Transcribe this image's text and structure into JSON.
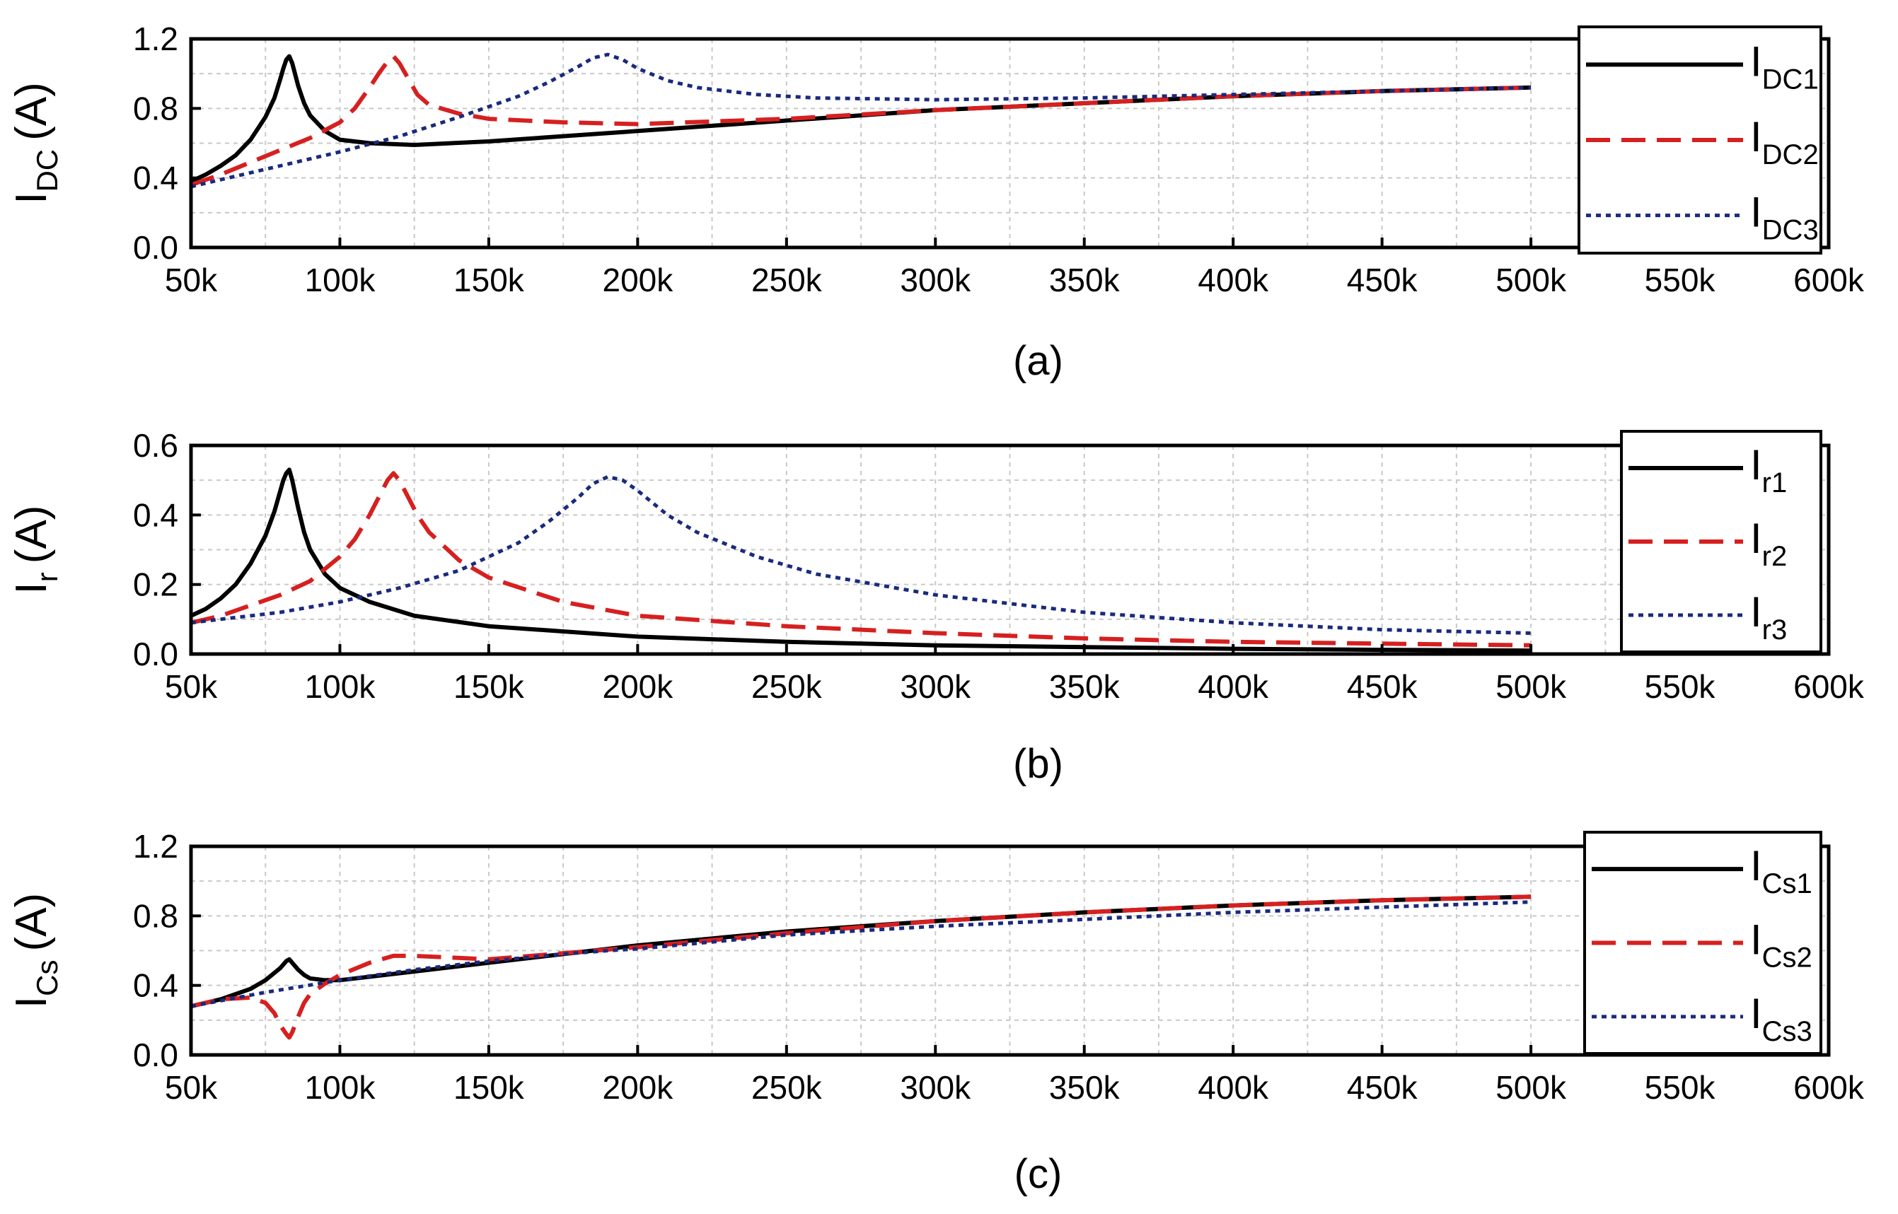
{
  "chart_data": [
    {
      "type": "line",
      "caption": "(a)",
      "ylabel": {
        "main": "I",
        "sub": "DC",
        "unit": "(A)"
      },
      "xlim": [
        50,
        600
      ],
      "ylim": [
        0,
        1.2
      ],
      "xticks": [
        "50k",
        "100k",
        "150k",
        "200k",
        "250k",
        "300k",
        "350k",
        "400k",
        "450k",
        "500k",
        "550k",
        "600k"
      ],
      "yticks": [
        "0.0",
        "0.4",
        "0.8",
        "1.2"
      ],
      "grid": true,
      "legend_position": "right",
      "series": [
        {
          "name": "IDC1",
          "label_main": "I",
          "label_sub": "DC1",
          "color": "#000000",
          "style": "solid",
          "x": [
            50,
            55,
            60,
            65,
            70,
            75,
            78,
            80,
            81,
            82,
            83,
            84,
            86,
            88,
            90,
            95,
            100,
            110,
            125,
            150,
            200,
            250,
            300,
            350,
            400,
            450,
            500
          ],
          "y": [
            0.38,
            0.42,
            0.47,
            0.53,
            0.62,
            0.75,
            0.86,
            0.97,
            1.03,
            1.08,
            1.1,
            1.06,
            0.93,
            0.83,
            0.76,
            0.67,
            0.62,
            0.6,
            0.59,
            0.61,
            0.67,
            0.73,
            0.79,
            0.83,
            0.87,
            0.9,
            0.92
          ]
        },
        {
          "name": "IDC2",
          "label_main": "I",
          "label_sub": "DC2",
          "color": "#d62020",
          "style": "dashed",
          "x": [
            50,
            60,
            70,
            80,
            90,
            100,
            105,
            110,
            113,
            116,
            118,
            120,
            123,
            126,
            130,
            140,
            150,
            175,
            200,
            250,
            300,
            350,
            400,
            450,
            500
          ],
          "y": [
            0.36,
            0.42,
            0.49,
            0.56,
            0.63,
            0.72,
            0.8,
            0.92,
            1.0,
            1.07,
            1.1,
            1.06,
            0.97,
            0.88,
            0.82,
            0.77,
            0.74,
            0.72,
            0.71,
            0.74,
            0.79,
            0.83,
            0.87,
            0.9,
            0.92
          ]
        },
        {
          "name": "IDC3",
          "label_main": "I",
          "label_sub": "DC3",
          "color": "#1a2a7c",
          "style": "dotted",
          "x": [
            50,
            60,
            80,
            100,
            120,
            140,
            160,
            170,
            180,
            185,
            190,
            195,
            200,
            210,
            220,
            240,
            260,
            300,
            350,
            400,
            450,
            500
          ],
          "y": [
            0.35,
            0.39,
            0.47,
            0.55,
            0.64,
            0.75,
            0.87,
            0.95,
            1.04,
            1.09,
            1.11,
            1.08,
            1.03,
            0.96,
            0.92,
            0.88,
            0.86,
            0.85,
            0.86,
            0.88,
            0.9,
            0.92
          ]
        }
      ]
    },
    {
      "type": "line",
      "caption": "(b)",
      "ylabel": {
        "main": "I",
        "sub": "r",
        "unit": "(A)"
      },
      "xlim": [
        50,
        600
      ],
      "ylim": [
        0,
        0.6
      ],
      "xticks": [
        "50k",
        "100k",
        "150k",
        "200k",
        "250k",
        "300k",
        "350k",
        "400k",
        "450k",
        "500k",
        "550k",
        "600k"
      ],
      "yticks": [
        "0.0",
        "0.2",
        "0.4",
        "0.6"
      ],
      "grid": true,
      "legend_position": "right",
      "series": [
        {
          "name": "Ir1",
          "label_main": "I",
          "label_sub": "r1",
          "color": "#000000",
          "style": "solid",
          "x": [
            50,
            55,
            60,
            65,
            70,
            75,
            78,
            80,
            81,
            82,
            83,
            84,
            86,
            88,
            90,
            95,
            100,
            110,
            125,
            150,
            200,
            250,
            300,
            350,
            400,
            450,
            500
          ],
          "y": [
            0.11,
            0.13,
            0.16,
            0.2,
            0.26,
            0.34,
            0.41,
            0.47,
            0.5,
            0.52,
            0.53,
            0.5,
            0.42,
            0.35,
            0.3,
            0.23,
            0.19,
            0.15,
            0.11,
            0.08,
            0.05,
            0.035,
            0.025,
            0.02,
            0.015,
            0.012,
            0.01
          ]
        },
        {
          "name": "Ir2",
          "label_main": "I",
          "label_sub": "r2",
          "color": "#d62020",
          "style": "dashed",
          "x": [
            50,
            60,
            70,
            80,
            90,
            100,
            105,
            110,
            113,
            116,
            118,
            120,
            123,
            126,
            130,
            140,
            150,
            175,
            200,
            250,
            300,
            350,
            400,
            450,
            500
          ],
          "y": [
            0.09,
            0.11,
            0.14,
            0.17,
            0.21,
            0.28,
            0.33,
            0.4,
            0.45,
            0.5,
            0.52,
            0.5,
            0.45,
            0.4,
            0.35,
            0.27,
            0.22,
            0.15,
            0.11,
            0.08,
            0.06,
            0.045,
            0.035,
            0.03,
            0.025
          ]
        },
        {
          "name": "Ir3",
          "label_main": "I",
          "label_sub": "r3",
          "color": "#1a2a7c",
          "style": "dotted",
          "x": [
            50,
            60,
            80,
            100,
            120,
            140,
            160,
            170,
            180,
            185,
            190,
            195,
            200,
            210,
            220,
            240,
            260,
            300,
            350,
            400,
            450,
            500
          ],
          "y": [
            0.09,
            0.1,
            0.12,
            0.15,
            0.19,
            0.24,
            0.32,
            0.38,
            0.45,
            0.49,
            0.51,
            0.5,
            0.47,
            0.4,
            0.35,
            0.28,
            0.23,
            0.17,
            0.12,
            0.09,
            0.07,
            0.06
          ]
        }
      ]
    },
    {
      "type": "line",
      "caption": "(c)",
      "ylabel": {
        "main": "I",
        "sub": "Cs",
        "unit": "(A)"
      },
      "xlim": [
        50,
        600
      ],
      "ylim": [
        0,
        1.2
      ],
      "xticks": [
        "50k",
        "100k",
        "150k",
        "200k",
        "250k",
        "300k",
        "350k",
        "400k",
        "450k",
        "500k",
        "550k",
        "600k"
      ],
      "yticks": [
        "0.0",
        "0.4",
        "0.8",
        "1.2"
      ],
      "grid": true,
      "legend_position": "right",
      "series": [
        {
          "name": "ICs1",
          "label_main": "I",
          "label_sub": "Cs1",
          "color": "#000000",
          "style": "solid",
          "x": [
            50,
            60,
            70,
            75,
            80,
            82,
            83,
            84,
            86,
            88,
            90,
            95,
            100,
            125,
            150,
            200,
            250,
            300,
            350,
            400,
            450,
            500
          ],
          "y": [
            0.28,
            0.32,
            0.38,
            0.43,
            0.5,
            0.54,
            0.55,
            0.53,
            0.49,
            0.46,
            0.44,
            0.43,
            0.43,
            0.48,
            0.53,
            0.63,
            0.71,
            0.77,
            0.82,
            0.86,
            0.89,
            0.91
          ]
        },
        {
          "name": "ICs2",
          "label_main": "I",
          "label_sub": "Cs2",
          "color": "#d62020",
          "style": "dashed",
          "x": [
            50,
            60,
            70,
            75,
            78,
            80,
            82,
            83,
            84,
            86,
            88,
            90,
            95,
            100,
            110,
            118,
            125,
            150,
            200,
            250,
            300,
            350,
            400,
            450,
            500
          ],
          "y": [
            0.28,
            0.32,
            0.33,
            0.3,
            0.24,
            0.17,
            0.12,
            0.1,
            0.13,
            0.22,
            0.3,
            0.35,
            0.41,
            0.46,
            0.53,
            0.57,
            0.57,
            0.55,
            0.62,
            0.7,
            0.77,
            0.82,
            0.86,
            0.89,
            0.91
          ]
        },
        {
          "name": "ICs3",
          "label_main": "I",
          "label_sub": "Cs3",
          "color": "#1a2a7c",
          "style": "dotted",
          "x": [
            50,
            75,
            100,
            125,
            150,
            175,
            190,
            200,
            225,
            250,
            300,
            350,
            400,
            450,
            500
          ],
          "y": [
            0.28,
            0.36,
            0.43,
            0.49,
            0.54,
            0.58,
            0.6,
            0.61,
            0.65,
            0.69,
            0.74,
            0.78,
            0.82,
            0.85,
            0.88
          ]
        }
      ]
    }
  ]
}
